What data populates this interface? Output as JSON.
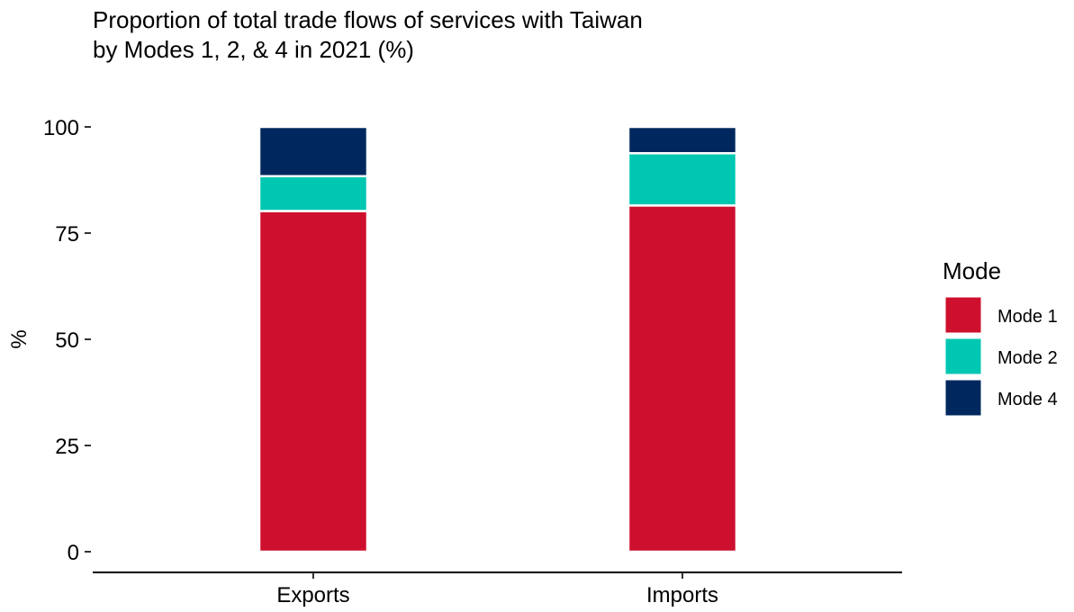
{
  "chart_data": {
    "type": "bar",
    "stacked": true,
    "title": "Proportion of total trade flows of services with Taiwan",
    "subtitle": "by Modes 1, 2, & 4 in 2021 (%)",
    "xlabel": "",
    "ylabel": "%",
    "categories": [
      "Exports",
      "Imports"
    ],
    "ylim": [
      0,
      100
    ],
    "yticks": [
      0,
      25,
      50,
      75,
      100
    ],
    "grid": false,
    "legend": {
      "title": "Mode",
      "position": "right"
    },
    "series": [
      {
        "name": "Mode 1",
        "color": "#CE102E",
        "values": [
          80.2,
          81.5
        ]
      },
      {
        "name": "Mode 2",
        "color": "#00C7B2",
        "values": [
          8.2,
          12.3
        ]
      },
      {
        "name": "Mode 4",
        "color": "#00285E",
        "values": [
          11.6,
          6.2
        ]
      }
    ]
  }
}
